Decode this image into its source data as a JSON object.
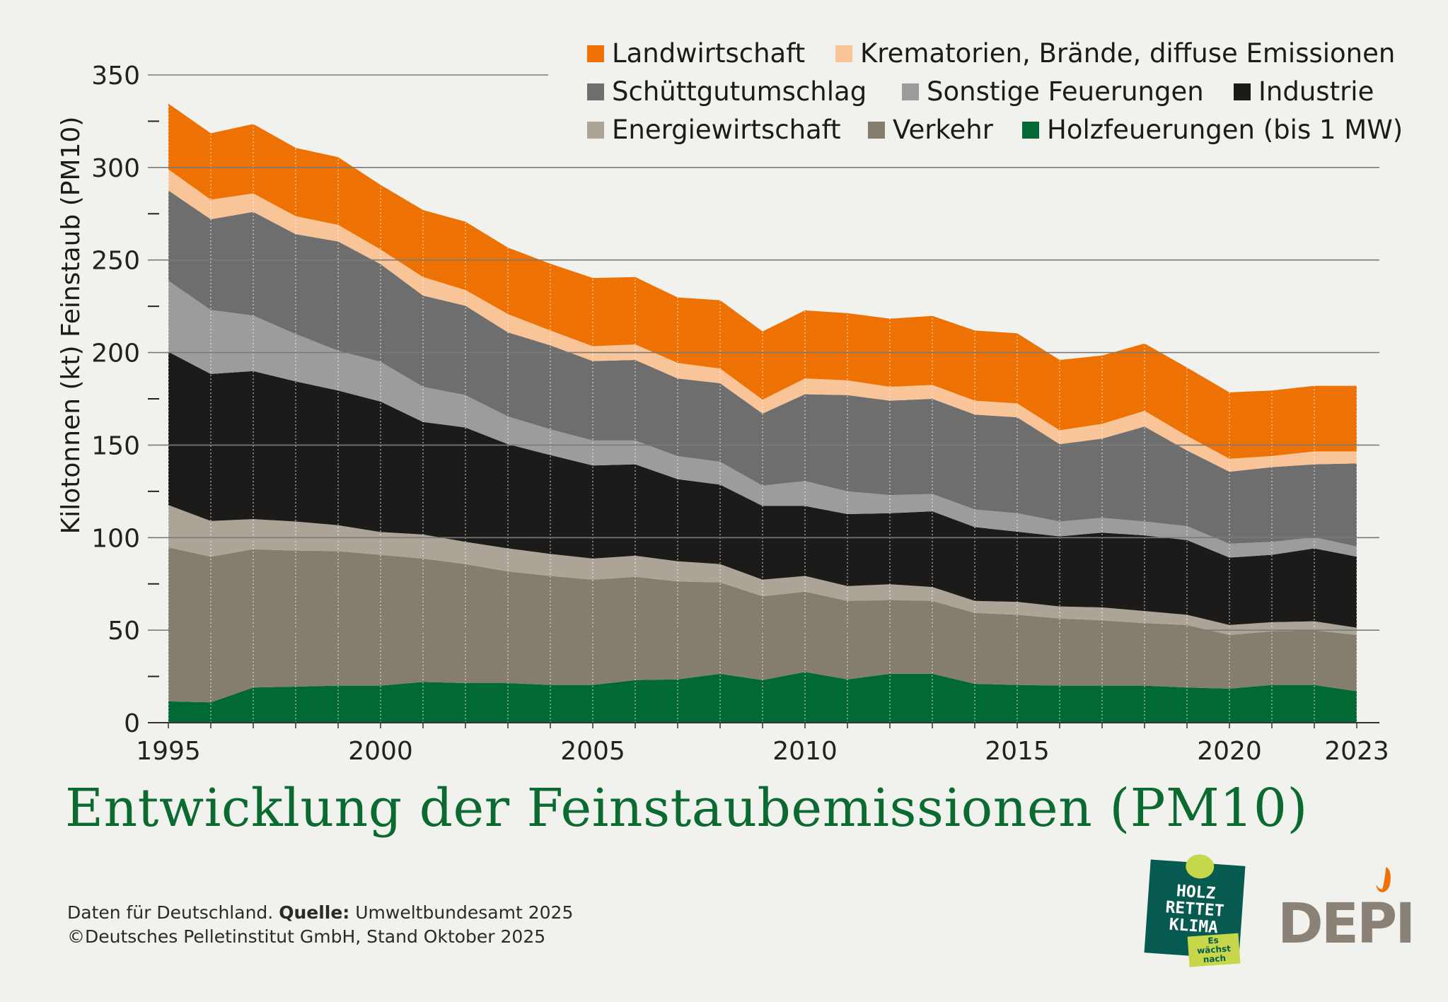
{
  "chart_data": {
    "type": "area",
    "stacked": true,
    "title": "Entwicklung der Feinstaubemissionen (PM10)",
    "xlabel": "",
    "ylabel": "Kilotonnen (kt) Feinstaub (PM10)",
    "ylim": [
      0,
      350
    ],
    "xlim": [
      1995,
      2023
    ],
    "grid": true,
    "legend_position": "top-right",
    "x": [
      1995,
      1996,
      1997,
      1998,
      1999,
      2000,
      2001,
      2002,
      2003,
      2004,
      2005,
      2006,
      2007,
      2008,
      2009,
      2010,
      2011,
      2012,
      2013,
      2014,
      2015,
      2016,
      2017,
      2018,
      2019,
      2020,
      2021,
      2022,
      2023
    ],
    "x_tick_labels": [
      "1995",
      "2000",
      "2005",
      "2010",
      "2015",
      "2020",
      "2023"
    ],
    "x_tick_values": [
      1995,
      2000,
      2005,
      2010,
      2015,
      2020,
      2023
    ],
    "y_tick_labels": [
      "0",
      "50",
      "100",
      "150",
      "200",
      "250",
      "300",
      "350"
    ],
    "y_tick_values": [
      0,
      50,
      100,
      150,
      200,
      250,
      300,
      350
    ],
    "series": [
      {
        "name": "Holzfeuerungen (bis 1 MW)",
        "color": "#006934",
        "values": [
          11.5,
          11,
          19,
          19.5,
          20,
          20,
          22,
          21.4,
          21.4,
          20.4,
          20.4,
          23,
          23.4,
          26.4,
          23,
          27.4,
          23.4,
          26.4,
          26.4,
          21,
          20.4,
          20,
          20,
          20,
          19,
          18.4,
          20.4,
          20.4,
          17
        ]
      },
      {
        "name": "Verkehr",
        "color": "#857e6c",
        "values": [
          83.2,
          78.7,
          74.7,
          73.5,
          72.7,
          70.7,
          66.7,
          64.3,
          60.3,
          58.9,
          56.9,
          55.8,
          52.9,
          49.4,
          45.3,
          43.4,
          42.4,
          39.9,
          39.4,
          38.3,
          37.9,
          36.3,
          35.3,
          33.8,
          33.8,
          29,
          29,
          29.5,
          30.4
        ]
      },
      {
        "name": "Energiewirtschaft",
        "color": "#aca597",
        "values": [
          22.9,
          19.3,
          16.3,
          15.7,
          14,
          12.3,
          13,
          12,
          12.5,
          11.9,
          11.4,
          11.4,
          10.9,
          9.9,
          9,
          8.5,
          8,
          8.5,
          7.5,
          6.5,
          7,
          6.5,
          7,
          6.5,
          5.5,
          5.4,
          4.9,
          4.9,
          3.9
        ]
      },
      {
        "name": "Industrie",
        "color": "#1c1b1a",
        "values": [
          82.8,
          79.4,
          80,
          75.7,
          72.8,
          70.5,
          60.8,
          61.8,
          56.3,
          53.4,
          50.3,
          49.4,
          44.4,
          42.9,
          39.8,
          37.8,
          38.9,
          38.4,
          40.9,
          39.9,
          37.9,
          37.9,
          40.4,
          40.9,
          40.4,
          36.4,
          36.4,
          39.4,
          38.4
        ]
      },
      {
        "name": "Sonstige Feuerungen",
        "color": "#9c9c9c",
        "values": [
          38.4,
          34.6,
          30,
          25.6,
          21.5,
          21.5,
          19,
          17.5,
          15,
          13.9,
          13.5,
          12.9,
          12.4,
          12.4,
          11,
          13.5,
          12.3,
          9.8,
          9.4,
          9.5,
          10,
          8,
          8,
          7.5,
          7.5,
          7.5,
          7,
          6,
          5.5
        ]
      },
      {
        "name": "Schüttgutumschlag",
        "color": "#6e6e6e",
        "values": [
          48.8,
          49,
          56,
          54,
          59,
          52.8,
          49.3,
          48.3,
          45.4,
          45.4,
          42.9,
          43.5,
          42,
          42.4,
          38.9,
          46.9,
          52,
          51,
          51.4,
          51.3,
          51.8,
          41.8,
          42.8,
          51.3,
          40.9,
          38.9,
          40.4,
          39.4,
          44.9
        ]
      },
      {
        "name": "Krematorien, Brände, diffuse Emissionen",
        "color": "#f9c498",
        "values": [
          11.4,
          10.6,
          10,
          9.7,
          9,
          7.9,
          10,
          8.5,
          9.9,
          8,
          8,
          8.4,
          8.4,
          8,
          7.5,
          8.5,
          8,
          7.5,
          7.5,
          7.5,
          7.5,
          7.5,
          8,
          8.5,
          7.9,
          7,
          6,
          7,
          6.5
        ]
      },
      {
        "name": "Landwirtschaft",
        "color": "#ee7203",
        "values": [
          35.5,
          35.9,
          37.5,
          36.9,
          36.6,
          34.9,
          36.2,
          36.9,
          35.9,
          36.1,
          36.9,
          36.4,
          35.4,
          36.9,
          36.9,
          36.8,
          36.3,
          36.8,
          37.3,
          37.9,
          37.9,
          38,
          36.9,
          36.4,
          36.9,
          35.9,
          35.4,
          35.4,
          35.4
        ]
      }
    ],
    "legend_order": [
      7,
      6,
      5,
      4,
      3,
      2,
      1,
      0
    ]
  },
  "footer": {
    "line1_a": "Daten für Deutschland. ",
    "line1_b": "Quelle:",
    "line1_c": " Umweltbundesamt 2025",
    "line2": "©Deutsches Pelletinstitut GmbH, Stand Oktober 2025"
  },
  "logos": {
    "hrk_text": "HOLZ RETTET KLIMA",
    "hrk_tag": "Es wächst nach",
    "depi": "DEPI"
  },
  "colors": {
    "background": "#f1f1ee",
    "title": "#0a6a30"
  }
}
